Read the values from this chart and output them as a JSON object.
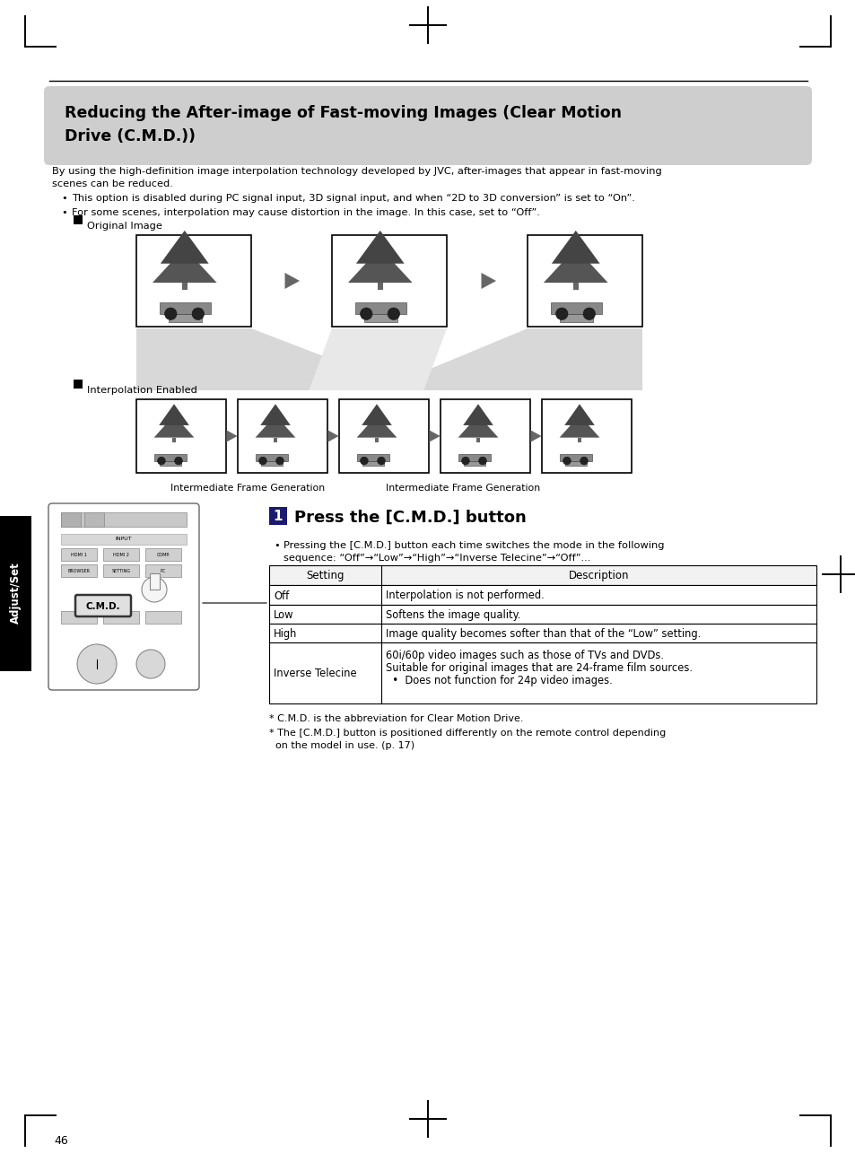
{
  "title_line1": "Reducing the After-image of Fast-moving Images (Clear Motion",
  "title_line2": "Drive (C.M.D.))",
  "body_text1": "By using the high-definition image interpolation technology developed by JVC, after-images that appear in fast-moving",
  "body_text2": "scenes can be reduced.",
  "bullet1": "This option is disabled during PC signal input, 3D signal input, and when “2D to 3D conversion” is set to “On”.",
  "bullet2": "For some scenes, interpolation may cause distortion in the image. In this case, set to “Off”.",
  "label_original": "Original Image",
  "label_interp": "Interpolation Enabled",
  "label_ifg1": "Intermediate Frame Generation",
  "label_ifg2": "Intermediate Frame Generation",
  "step_num": "1",
  "step_title": "Press the [C.M.D.] button",
  "step_bullet": "Pressing the [C.M.D.] button each time switches the mode in the following",
  "step_bullet2": "sequence: “Off”→“Low”→“High”→“Inverse Telecine”→“Off”...",
  "table_header": [
    "Setting",
    "Description"
  ],
  "table_rows": [
    [
      "Off",
      "Interpolation is not performed."
    ],
    [
      "Low",
      "Softens the image quality."
    ],
    [
      "High",
      "Image quality becomes softer than that of the “Low” setting."
    ],
    [
      "Inverse Telecine",
      "60i/60p video images such as those of TVs and DVDs.\nSuitable for original images that are 24-frame film sources.\n  •  Does not function for 24p video images."
    ]
  ],
  "footnote1": "* C.M.D. is the abbreviation for Clear Motion Drive.",
  "footnote2": "* The [C.M.D.] button is positioned differently on the remote control depending",
  "footnote3": "  on the model in use. (p. 17)",
  "page_num": "46",
  "side_label": "Adjust/Set",
  "bg_color": "#ffffff",
  "title_box_color": "#c8c8c8"
}
